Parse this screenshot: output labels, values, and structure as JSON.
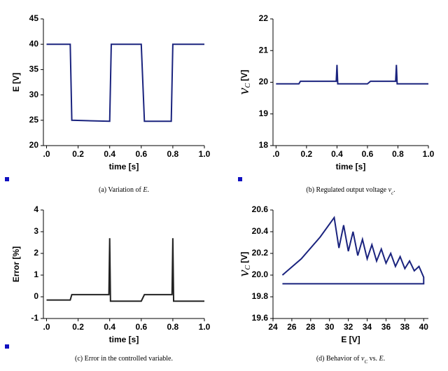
{
  "chart_data": [
    {
      "type": "line",
      "xlabel": "time [s]",
      "ylabel": "E [V]",
      "x": [
        0,
        0.15,
        0.16,
        0.4,
        0.41,
        0.6,
        0.62,
        0.79,
        0.8,
        1.0
      ],
      "values": [
        40,
        40,
        25,
        24.8,
        40,
        40,
        24.8,
        24.8,
        40,
        40
      ],
      "color": "#1a237e",
      "xlim": [
        -0.02,
        1.0
      ],
      "ylim": [
        20,
        45
      ],
      "xticks": [
        {
          "value": 0,
          "label": ".0"
        },
        0.2,
        0.4,
        0.6,
        0.8,
        {
          "value": 1,
          "label": "1.0"
        }
      ],
      "yticks": [
        20,
        25,
        30,
        35,
        40,
        45
      ],
      "caption": [
        {
          "text": "(a) Variation of "
        },
        {
          "text": "E",
          "style": "italic"
        },
        {
          "text": "."
        }
      ]
    },
    {
      "type": "line",
      "xlabel": "time [s]",
      "ylabel": {
        "symbol": "v",
        "subscript": "C",
        "unit": "[V]"
      },
      "x": [
        0,
        0.15,
        0.16,
        0.395,
        0.4,
        0.405,
        0.6,
        0.62,
        0.785,
        0.79,
        0.795,
        1.0
      ],
      "values": [
        19.95,
        19.95,
        20.03,
        20.03,
        20.55,
        19.95,
        19.95,
        20.03,
        20.03,
        20.55,
        19.95,
        19.95
      ],
      "color": "#1a237e",
      "xlim": [
        -0.02,
        1.0
      ],
      "ylim": [
        18,
        22
      ],
      "xticks": [
        {
          "value": 0,
          "label": ".0"
        },
        0.2,
        0.4,
        0.6,
        0.8,
        {
          "value": 1,
          "label": "1.0"
        }
      ],
      "yticks": [
        18,
        19,
        20,
        21,
        22
      ],
      "caption": [
        {
          "text": "(b) Regulated output voltage "
        },
        {
          "text": "v",
          "style": "italic"
        },
        {
          "text": "c",
          "style": "sub"
        },
        {
          "text": "."
        }
      ]
    },
    {
      "type": "line",
      "xlabel": "time [s]",
      "ylabel": "Error [%]",
      "x": [
        0,
        0.15,
        0.16,
        0.395,
        0.4,
        0.405,
        0.6,
        0.62,
        0.795,
        0.8,
        0.805,
        1.0
      ],
      "values": [
        -0.15,
        -0.15,
        0.1,
        0.1,
        2.7,
        -0.2,
        -0.2,
        0.1,
        0.1,
        2.7,
        -0.2,
        -0.2
      ],
      "color": "#222222",
      "xlim": [
        -0.02,
        1.0
      ],
      "ylim": [
        -1,
        4
      ],
      "xticks": [
        {
          "value": 0,
          "label": ".0"
        },
        0.2,
        0.4,
        0.6,
        0.8,
        {
          "value": 1,
          "label": "1.0"
        }
      ],
      "yticks": [
        -1,
        0,
        1,
        2,
        3,
        4
      ],
      "caption": [
        {
          "text": "(c) Error in the controlled variable."
        }
      ]
    },
    {
      "type": "line",
      "xlabel": "E [V]",
      "ylabel": {
        "symbol": "v",
        "subscript": "C",
        "unit": "[V]"
      },
      "x": [
        25,
        27,
        29,
        30.5,
        31,
        31.5,
        32,
        32.5,
        33,
        33.5,
        34,
        34.5,
        35,
        35.5,
        36,
        36.5,
        37,
        37.5,
        38,
        38.5,
        39,
        39.5,
        40,
        40,
        25
      ],
      "values": [
        20.0,
        20.15,
        20.35,
        20.53,
        20.25,
        20.46,
        20.22,
        20.4,
        20.18,
        20.33,
        20.15,
        20.28,
        20.13,
        20.24,
        20.11,
        20.2,
        20.08,
        20.17,
        20.06,
        20.13,
        20.04,
        20.08,
        19.98,
        19.92,
        19.92
      ],
      "color": "#1a237e",
      "xlim": [
        24,
        40.5
      ],
      "ylim": [
        19.6,
        20.6
      ],
      "xticks": [
        24,
        26,
        28,
        30,
        32,
        34,
        36,
        38,
        40
      ],
      "yticks": [
        19.6,
        19.8,
        {
          "value": 20,
          "label": "20.0"
        },
        20.2,
        20.4,
        20.6
      ],
      "caption": [
        {
          "text": "(d) Behavior of "
        },
        {
          "text": "v",
          "style": "italic"
        },
        {
          "text": "C",
          "style": "sub"
        },
        {
          "text": " vs. "
        },
        {
          "text": "E",
          "style": "italic"
        },
        {
          "text": "."
        }
      ]
    }
  ]
}
